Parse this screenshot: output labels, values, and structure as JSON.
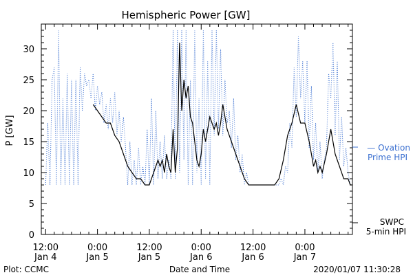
{
  "chart_data": {
    "type": "line",
    "title": "Hemispheric Power [GW]",
    "xlabel": "Date and Time",
    "ylabel": "P [GW]",
    "ylim": [
      0,
      34
    ],
    "y_ticks": [
      0,
      5,
      10,
      15,
      20,
      25,
      30
    ],
    "x_ticks": [
      {
        "time": "12:00",
        "date": "Jan 4"
      },
      {
        "time": "0:00",
        "date": "Jan 5"
      },
      {
        "time": "12:00",
        "date": "Jan 5"
      },
      {
        "time": "0:00",
        "date": "Jan 6"
      },
      {
        "time": "12:00",
        "date": "Jan 6"
      },
      {
        "time": "0:00",
        "date": "Jan 7"
      }
    ],
    "x_range_hours": [
      -1,
      71
    ],
    "grid": false,
    "series": [
      {
        "name": "Ovation Prime HPI",
        "color": "#3a6fd0",
        "style": "dotted",
        "points": [
          [
            0,
            8
          ],
          [
            0.5,
            18
          ],
          [
            1,
            8
          ],
          [
            1.5,
            25
          ],
          [
            2,
            27
          ],
          [
            2.5,
            8
          ],
          [
            3,
            33
          ],
          [
            3.5,
            8
          ],
          [
            4,
            22
          ],
          [
            4.5,
            8
          ],
          [
            5,
            26
          ],
          [
            5.5,
            8
          ],
          [
            6,
            25
          ],
          [
            6.5,
            8
          ],
          [
            7,
            25
          ],
          [
            7.5,
            8
          ],
          [
            8,
            27
          ],
          [
            8.5,
            20
          ],
          [
            9,
            26
          ],
          [
            9.5,
            24
          ],
          [
            10,
            25
          ],
          [
            10.5,
            22
          ],
          [
            11,
            26
          ],
          [
            11.5,
            20
          ],
          [
            12,
            24
          ],
          [
            12.5,
            21
          ],
          [
            13,
            23
          ],
          [
            13.5,
            18
          ],
          [
            14,
            21
          ],
          [
            14.5,
            17
          ],
          [
            15,
            22
          ],
          [
            15.5,
            18
          ],
          [
            16,
            23
          ],
          [
            16.5,
            16
          ],
          [
            17,
            20
          ],
          [
            17.5,
            15
          ],
          [
            18,
            19
          ],
          [
            18.5,
            14
          ],
          [
            19,
            8
          ],
          [
            19.5,
            15
          ],
          [
            20,
            8
          ],
          [
            20.5,
            12
          ],
          [
            21,
            8
          ],
          [
            21.5,
            14
          ],
          [
            22,
            8
          ],
          [
            22.5,
            11
          ],
          [
            23,
            8
          ],
          [
            23.5,
            17
          ],
          [
            24,
            8
          ],
          [
            24.5,
            22
          ],
          [
            25,
            8
          ],
          [
            25.5,
            20
          ],
          [
            26,
            9
          ],
          [
            26.5,
            15
          ],
          [
            27,
            9
          ],
          [
            27.5,
            16
          ],
          [
            28,
            9
          ],
          [
            28.5,
            12
          ],
          [
            29,
            9
          ],
          [
            29.5,
            33
          ],
          [
            30,
            9
          ],
          [
            30.5,
            33
          ],
          [
            31,
            10
          ],
          [
            31.5,
            33
          ],
          [
            32,
            12
          ],
          [
            32.5,
            33
          ],
          [
            33,
            8
          ],
          [
            33.5,
            25
          ],
          [
            34,
            8
          ],
          [
            34.5,
            33
          ],
          [
            35,
            10
          ],
          [
            35.5,
            22
          ],
          [
            36,
            8
          ],
          [
            36.5,
            33
          ],
          [
            37,
            9
          ],
          [
            37.5,
            28
          ],
          [
            38,
            8
          ],
          [
            38.5,
            33
          ],
          [
            39,
            16
          ],
          [
            39.5,
            33
          ],
          [
            40,
            17
          ],
          [
            40.5,
            30
          ],
          [
            41,
            16
          ],
          [
            41.5,
            25
          ],
          [
            42,
            18
          ],
          [
            42.5,
            20
          ],
          [
            43,
            14
          ],
          [
            43.5,
            22
          ],
          [
            44,
            12
          ],
          [
            44.5,
            16
          ],
          [
            45,
            10
          ],
          [
            45.5,
            13
          ],
          [
            46,
            8
          ],
          [
            46.5,
            10
          ],
          [
            47,
            8
          ],
          [
            48,
            8
          ],
          [
            49,
            8
          ],
          [
            50,
            8
          ],
          [
            51,
            8
          ],
          [
            52,
            8
          ],
          [
            53,
            8
          ],
          [
            54,
            8
          ],
          [
            54.5,
            9
          ],
          [
            55,
            8
          ],
          [
            55.5,
            11
          ],
          [
            56,
            10
          ],
          [
            56.5,
            18
          ],
          [
            57,
            14
          ],
          [
            57.5,
            27
          ],
          [
            58,
            19
          ],
          [
            58.5,
            32
          ],
          [
            59,
            22
          ],
          [
            59.5,
            28
          ],
          [
            60,
            18
          ],
          [
            60.5,
            28
          ],
          [
            61,
            14
          ],
          [
            61.5,
            24
          ],
          [
            62,
            12
          ],
          [
            62.5,
            18
          ],
          [
            63,
            10
          ],
          [
            63.5,
            15
          ],
          [
            64,
            9
          ],
          [
            64.5,
            12
          ],
          [
            65,
            14
          ],
          [
            65.5,
            26
          ],
          [
            66,
            22
          ],
          [
            66.5,
            31
          ],
          [
            67,
            16
          ],
          [
            67.5,
            28
          ],
          [
            68,
            12
          ],
          [
            68.5,
            19
          ],
          [
            69,
            11
          ],
          [
            69.5,
            14
          ],
          [
            70,
            10
          ],
          [
            70.5,
            8
          ],
          [
            71,
            8
          ]
        ]
      },
      {
        "name": "SWPC 5-min HPI",
        "color": "#000000",
        "style": "solid",
        "points": [
          [
            11,
            21
          ],
          [
            12,
            20
          ],
          [
            13,
            19
          ],
          [
            14,
            18
          ],
          [
            15,
            18
          ],
          [
            16,
            16
          ],
          [
            17,
            15
          ],
          [
            18,
            13
          ],
          [
            19,
            11
          ],
          [
            20,
            10
          ],
          [
            21,
            9
          ],
          [
            22,
            9
          ],
          [
            23,
            8
          ],
          [
            24,
            8
          ],
          [
            25,
            10
          ],
          [
            26,
            12
          ],
          [
            26.5,
            11
          ],
          [
            27,
            12
          ],
          [
            27.5,
            10
          ],
          [
            28,
            13
          ],
          [
            28.5,
            11
          ],
          [
            29,
            10
          ],
          [
            29.5,
            17
          ],
          [
            30,
            10
          ],
          [
            30.5,
            14
          ],
          [
            31,
            31
          ],
          [
            31.5,
            20
          ],
          [
            32,
            25
          ],
          [
            32.5,
            22
          ],
          [
            33,
            24
          ],
          [
            33.5,
            19
          ],
          [
            34,
            18
          ],
          [
            34.5,
            15
          ],
          [
            35,
            12
          ],
          [
            35.5,
            11
          ],
          [
            36,
            13
          ],
          [
            36.5,
            17
          ],
          [
            37,
            15
          ],
          [
            37.5,
            17
          ],
          [
            38,
            19
          ],
          [
            38.5,
            18
          ],
          [
            39,
            17
          ],
          [
            39.5,
            18
          ],
          [
            40,
            16
          ],
          [
            40.5,
            18
          ],
          [
            41,
            21
          ],
          [
            42,
            17
          ],
          [
            43,
            15
          ],
          [
            44,
            13
          ],
          [
            45,
            11
          ],
          [
            46,
            9
          ],
          [
            47,
            8
          ],
          [
            48,
            8
          ],
          [
            49,
            8
          ],
          [
            50,
            8
          ],
          [
            51,
            8
          ],
          [
            52,
            8
          ],
          [
            53,
            8
          ],
          [
            54,
            9
          ],
          [
            55,
            12
          ],
          [
            56,
            16
          ],
          [
            57,
            18
          ],
          [
            58,
            21
          ],
          [
            59,
            18
          ],
          [
            60,
            18
          ],
          [
            61,
            15
          ],
          [
            61.5,
            13
          ],
          [
            62,
            11
          ],
          [
            62.5,
            12
          ],
          [
            63,
            10
          ],
          [
            63.5,
            11
          ],
          [
            64,
            10
          ],
          [
            65,
            13
          ],
          [
            66,
            17
          ],
          [
            67,
            13
          ],
          [
            68,
            11
          ],
          [
            69,
            9
          ],
          [
            70,
            9
          ],
          [
            70.5,
            8
          ],
          [
            71,
            8
          ]
        ]
      }
    ],
    "legend": [
      {
        "label_line1": "— Ovation",
        "label_line2": "Prime HPI",
        "color": "#3a6fd0"
      },
      {
        "label_line1": "SWPC",
        "label_line2": "5-min HPI",
        "color": "#000000"
      }
    ],
    "footer_left": "Plot: CCMC",
    "footer_right": "2020/01/07 11:30:28"
  }
}
